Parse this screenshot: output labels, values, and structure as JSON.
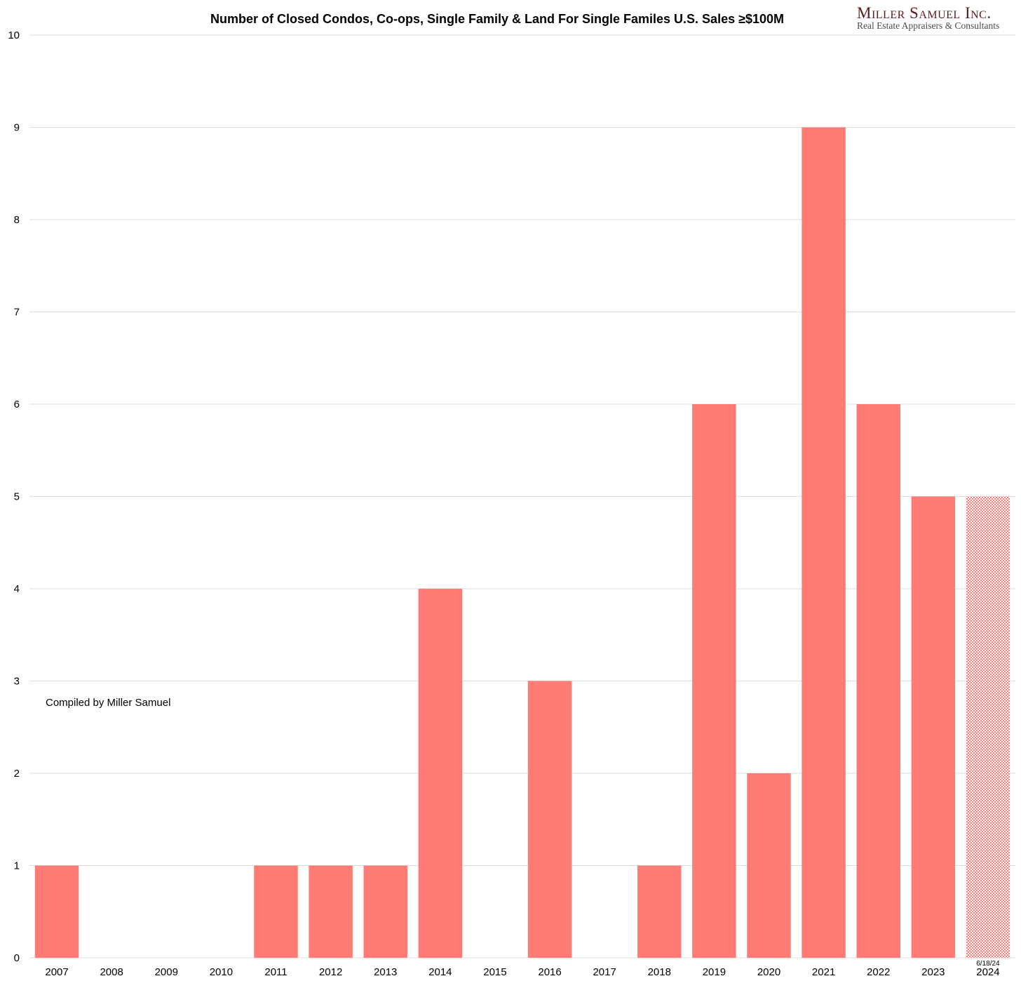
{
  "chart_data": {
    "type": "bar",
    "title": "Number of Closed Condos, Co-ops, Single Family & Land For Single Familes U.S. Sales ≥$100M",
    "xlabel": "",
    "ylabel": "",
    "ylim": [
      0,
      10
    ],
    "yticks": [
      0,
      1,
      2,
      3,
      4,
      5,
      6,
      7,
      8,
      9,
      10
    ],
    "grid": true,
    "categories": [
      "2007",
      "2008",
      "2009",
      "2010",
      "2011",
      "2012",
      "2013",
      "2014",
      "2015",
      "2016",
      "2017",
      "2018",
      "2019",
      "2020",
      "2021",
      "2022",
      "2023",
      "2024"
    ],
    "values": [
      1,
      0,
      0,
      0,
      1,
      1,
      1,
      4,
      0,
      3,
      0,
      1,
      6,
      2,
      9,
      6,
      5,
      5
    ],
    "partial_bar": {
      "category": "2024",
      "label": "6/18/24",
      "style": "hatched"
    },
    "bar_color": "#ff7b75",
    "grid_color": "#dddddd",
    "annotation": "Compiled by Miller Samuel"
  },
  "logo": {
    "name": "Miller Samuel Inc.",
    "tagline": "Real Estate Appraisers & Consultants"
  }
}
